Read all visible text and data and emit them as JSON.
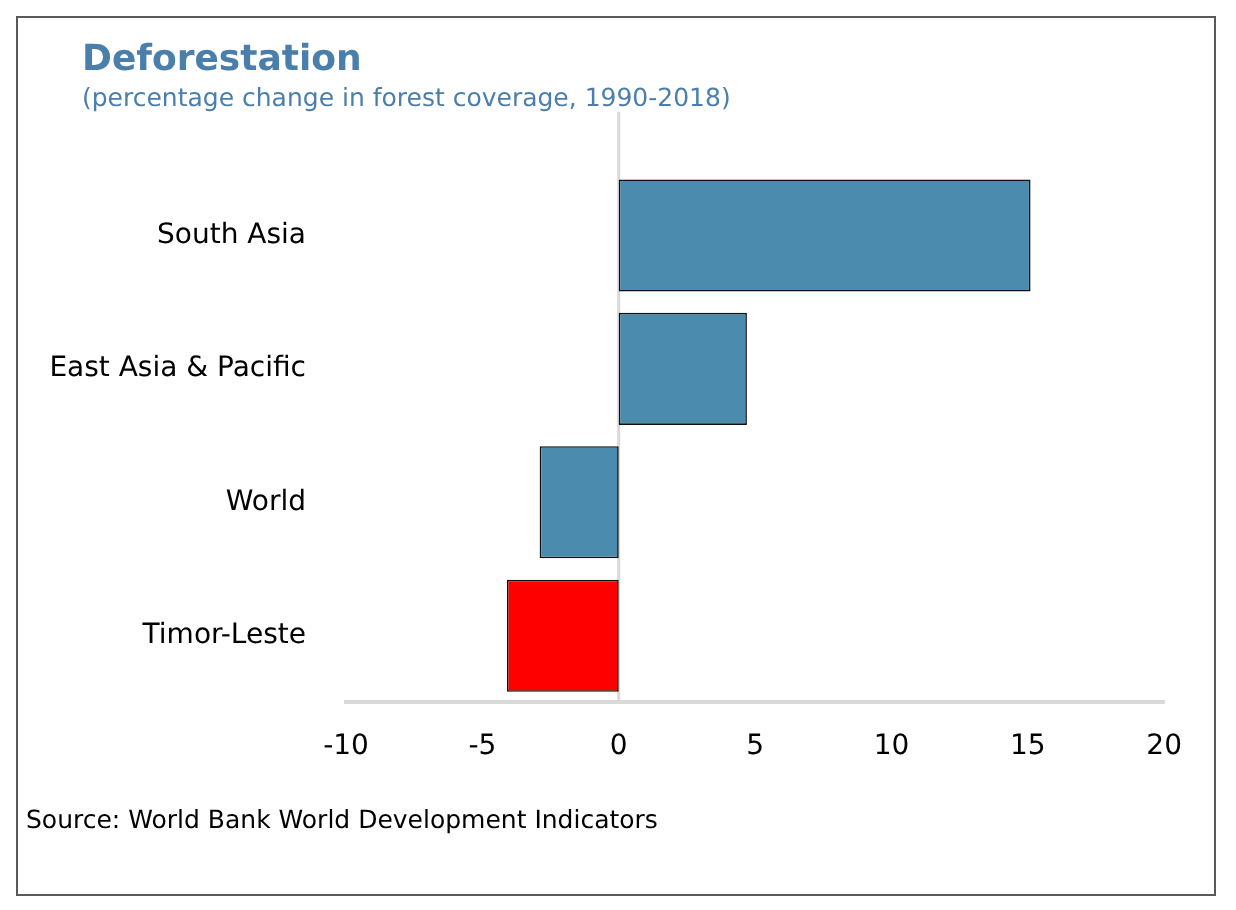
{
  "chart_data": {
    "type": "bar",
    "orientation": "horizontal",
    "title": "Deforestation",
    "subtitle": "(percentage change in forest coverage, 1990-2018)",
    "categories": [
      "South Asia",
      "East Asia & Pacific",
      "World",
      "Timor-Leste"
    ],
    "values": [
      15.1,
      4.7,
      -2.9,
      -4.1
    ],
    "colors": [
      "#4b8bad",
      "#4b8bad",
      "#4b8bad",
      "#ff0000"
    ],
    "xlim": [
      -10,
      20
    ],
    "xticks": [
      -10,
      -5,
      0,
      5,
      10,
      15,
      20
    ],
    "grid": false,
    "legend": false,
    "ref_lines": [
      {
        "axis": "x",
        "value": 0,
        "color": "#d9d9d9"
      }
    ],
    "annotations": [
      "Source: World Bank World Development Indicators"
    ]
  }
}
